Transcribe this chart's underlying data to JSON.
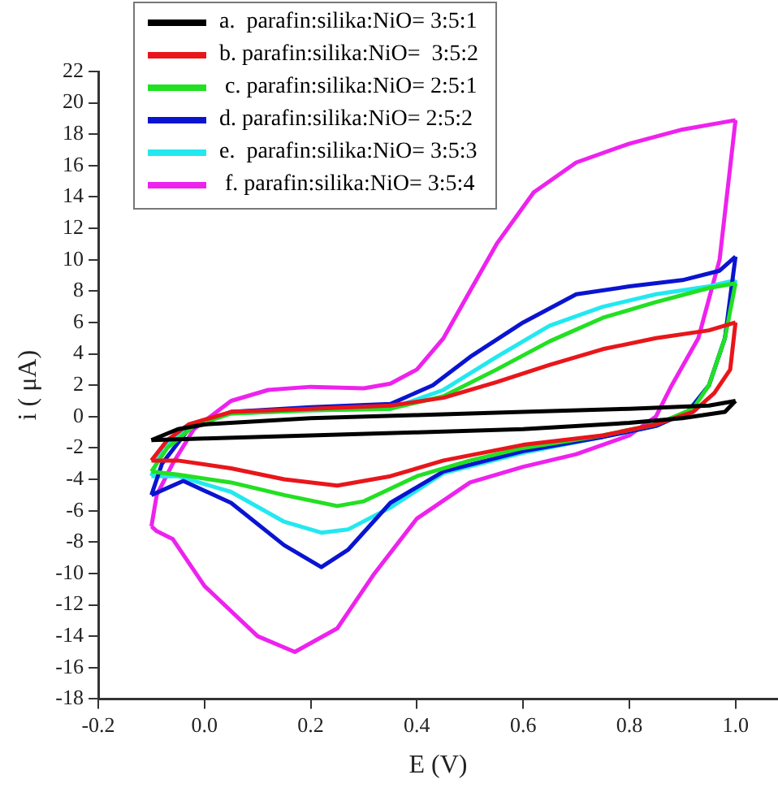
{
  "chart_data": {
    "type": "line",
    "xlabel": "E (V)",
    "ylabel": "i ( μA)",
    "xlim": [
      -0.2,
      1.08
    ],
    "xticks": [
      {
        "value": -0.2,
        "label": "-0.2"
      },
      {
        "value": 0,
        "label": "0.0"
      },
      {
        "value": 0.2,
        "label": "0.2"
      },
      {
        "value": 0.4,
        "label": "0.4"
      },
      {
        "value": 0.6,
        "label": "0.6"
      },
      {
        "value": 0.8,
        "label": "0.8"
      },
      {
        "value": 1,
        "label": "1.0"
      }
    ],
    "ylim": [
      -18,
      22
    ],
    "yticks": [
      -18,
      -16,
      -14,
      -12,
      -10,
      -8,
      -6,
      -4,
      -2,
      0,
      2,
      4,
      6,
      8,
      10,
      12,
      14,
      16,
      18,
      20,
      22
    ],
    "grid": false,
    "legend": "top left",
    "marker": "none",
    "line_style": "solid",
    "series": [
      {
        "name": "a.  parafin:silika:NiO= 3:5:1",
        "color": "#000000",
        "x": [
          -0.1,
          -0.05,
          0,
          0.2,
          0.4,
          0.6,
          0.8,
          0.95,
          1,
          0.98,
          0.9,
          0.8,
          0.6,
          0.4,
          0.2,
          0,
          -0.1
        ],
        "values": [
          -1.5,
          -0.8,
          -0.5,
          -0.1,
          0.1,
          0.3,
          0.5,
          0.7,
          1,
          0.3,
          -0.1,
          -0.4,
          -0.8,
          -1,
          -1.2,
          -1.4,
          -1.5
        ]
      },
      {
        "name": "b. parafin:silika:NiO=  3:5:2",
        "color": "#e8161b",
        "x": [
          -0.1,
          -0.07,
          -0.03,
          0.05,
          0.2,
          0.35,
          0.45,
          0.55,
          0.65,
          0.75,
          0.85,
          0.95,
          1,
          0.99,
          0.96,
          0.92,
          0.85,
          0.75,
          0.6,
          0.45,
          0.35,
          0.25,
          0.15,
          0.05,
          -0.05,
          -0.1
        ],
        "values": [
          -2.8,
          -1.5,
          -0.5,
          0.3,
          0.5,
          0.7,
          1.2,
          2.2,
          3.3,
          4.3,
          5,
          5.5,
          6,
          3,
          1.5,
          0.3,
          -0.5,
          -1.2,
          -1.8,
          -2.8,
          -3.8,
          -4.4,
          -4,
          -3.3,
          -2.8,
          -2.8
        ]
      },
      {
        "name": " c. parafin:silika:NiO= 2:5:1",
        "color": "#22e022",
        "x": [
          -0.1,
          -0.07,
          -0.02,
          0.05,
          0.2,
          0.35,
          0.45,
          0.55,
          0.65,
          0.75,
          0.85,
          0.95,
          1,
          0.98,
          0.95,
          0.92,
          0.85,
          0.75,
          0.6,
          0.5,
          0.4,
          0.3,
          0.25,
          0.15,
          0.05,
          -0.05,
          -0.1
        ],
        "values": [
          -3.5,
          -2,
          -0.6,
          0.2,
          0.4,
          0.5,
          1.3,
          3,
          4.8,
          6.3,
          7.3,
          8.2,
          8.5,
          5,
          2,
          0.5,
          -0.5,
          -1.2,
          -2,
          -2.8,
          -3.8,
          -5.4,
          -5.7,
          -5,
          -4.2,
          -3.7,
          -3.5
        ]
      },
      {
        "name": "d. parafin:silika:NiO= 2:5:2",
        "color": "#0a14d0",
        "x": [
          -0.1,
          -0.08,
          -0.03,
          0.05,
          0.2,
          0.35,
          0.43,
          0.5,
          0.6,
          0.7,
          0.8,
          0.9,
          0.97,
          1,
          0.98,
          0.95,
          0.91,
          0.85,
          0.75,
          0.6,
          0.45,
          0.35,
          0.27,
          0.22,
          0.15,
          0.05,
          -0.04,
          -0.1
        ],
        "values": [
          -5,
          -3,
          -0.8,
          0.3,
          0.6,
          0.8,
          2,
          3.8,
          6,
          7.8,
          8.3,
          8.7,
          9.3,
          10.2,
          5,
          2,
          0.3,
          -0.6,
          -1.3,
          -2.2,
          -3.5,
          -5.5,
          -8.5,
          -9.6,
          -8.2,
          -5.5,
          -4.1,
          -5
        ]
      },
      {
        "name": "e.  parafin:silika:NiO= 3:5:3",
        "color": "#22e8f0",
        "x": [
          -0.1,
          -0.08,
          -0.03,
          0.05,
          0.2,
          0.35,
          0.45,
          0.55,
          0.65,
          0.75,
          0.85,
          0.95,
          1,
          0.98,
          0.95,
          0.91,
          0.85,
          0.75,
          0.6,
          0.45,
          0.35,
          0.27,
          0.22,
          0.15,
          0.05,
          -0.05,
          -0.1
        ],
        "values": [
          -3.8,
          -2,
          -0.6,
          0.2,
          0.4,
          0.5,
          1.7,
          3.8,
          5.8,
          7,
          7.8,
          8.3,
          8.7,
          5,
          2,
          0.3,
          -0.6,
          -1.3,
          -2.3,
          -3.6,
          -5.8,
          -7.2,
          -7.4,
          -6.7,
          -4.8,
          -3.8,
          -3.8
        ]
      },
      {
        "name": " f. parafin:silika:NiO= 3:5:4",
        "color": "#ee22ee",
        "x": [
          -0.1,
          -0.09,
          -0.06,
          -0.02,
          0.05,
          0.12,
          0.2,
          0.3,
          0.35,
          0.4,
          0.45,
          0.5,
          0.55,
          0.62,
          0.7,
          0.8,
          0.9,
          1,
          0.97,
          0.93,
          0.88,
          0.85,
          0.8,
          0.7,
          0.6,
          0.5,
          0.4,
          0.32,
          0.25,
          0.17,
          0.1,
          0,
          -0.06,
          -0.09,
          -0.1
        ],
        "values": [
          -7,
          -5,
          -3,
          -0.8,
          1,
          1.7,
          1.9,
          1.8,
          2.1,
          3,
          5,
          8,
          11,
          14.3,
          16.2,
          17.4,
          18.3,
          18.9,
          10,
          5,
          2,
          0,
          -1.2,
          -2.4,
          -3.2,
          -4.2,
          -6.5,
          -10,
          -13.5,
          -15,
          -14,
          -10.8,
          -7.8,
          -7.3,
          -7
        ]
      }
    ]
  }
}
